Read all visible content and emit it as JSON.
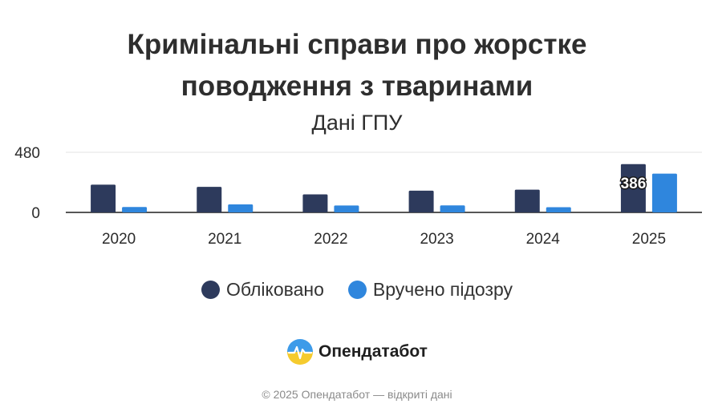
{
  "chart_data": {
    "type": "bar",
    "title_line1": "Кримінальні справи про жорстке",
    "title_line2": "поводження з тваринами",
    "subtitle": "Дані ГПУ",
    "categories": [
      "2020",
      "2021",
      "2022",
      "2023",
      "2024",
      "2025"
    ],
    "series": [
      {
        "name": "Обліковано",
        "color": "#2d3a5c",
        "values": [
          222,
          204,
          144,
          174,
          182,
          386
        ]
      },
      {
        "name": "Вручено підозру",
        "color": "#2f86dd",
        "values": [
          43,
          64,
          55,
          56,
          42,
          310
        ]
      }
    ],
    "y_ticks": [
      "0",
      "480"
    ],
    "ylim": [
      0,
      480
    ],
    "data_labels": [
      {
        "series": 0,
        "category": "2025",
        "text": "386"
      }
    ],
    "grid": true,
    "legend_position": "bottom"
  },
  "brand": {
    "name": "Опендатабот",
    "icon": "heartbeat-logo-icon"
  },
  "footer": {
    "text": "© 2025 Опендатабот — відкриті дані"
  }
}
